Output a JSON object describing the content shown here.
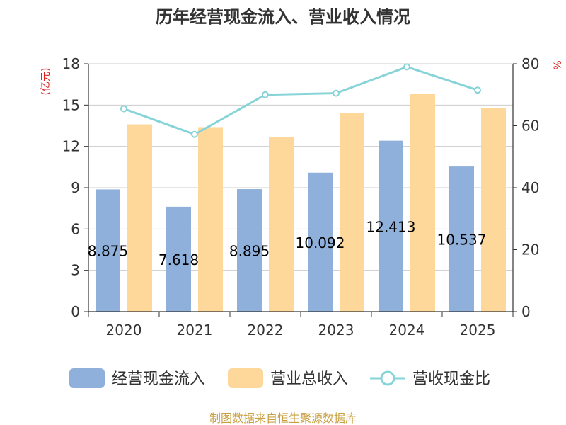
{
  "chart_data": {
    "type": "bar",
    "title": "历年经营现金流入、营业收入情况",
    "categories": [
      "2020",
      "2021",
      "2022",
      "2023",
      "2024",
      "2025"
    ],
    "series": [
      {
        "name": "经营现金流入",
        "kind": "bar",
        "axis": "left",
        "color": "#8eb0db",
        "values": [
          8.875,
          7.618,
          8.895,
          10.092,
          12.413,
          10.537
        ],
        "labels": [
          "8.875",
          "7.618",
          "8.895",
          "10.092",
          "12.413",
          "10.537"
        ]
      },
      {
        "name": "营业总收入",
        "kind": "bar",
        "axis": "left",
        "color": "#fdd89a",
        "values": [
          13.6,
          13.4,
          12.7,
          14.4,
          15.8,
          14.8
        ]
      },
      {
        "name": "营收现金比",
        "kind": "line",
        "axis": "right",
        "color": "#86d3d8",
        "values": [
          65.5,
          57.2,
          70.0,
          70.5,
          79.0,
          71.5
        ]
      }
    ],
    "y_left": {
      "label": "(亿元)",
      "min": 0,
      "max": 18,
      "ticks": [
        "0",
        "3",
        "6",
        "9",
        "12",
        "15",
        "18"
      ],
      "label_color": "#dd2222"
    },
    "y_right": {
      "label": "%",
      "min": 0,
      "max": 80,
      "ticks": [
        "0",
        "20",
        "40",
        "60",
        "80"
      ],
      "label_color": "#dd2222"
    },
    "grid": true,
    "legend_position": "bottom"
  },
  "source": {
    "text": "制图数据来自恒生聚源数据库",
    "color": "#c8a040"
  }
}
